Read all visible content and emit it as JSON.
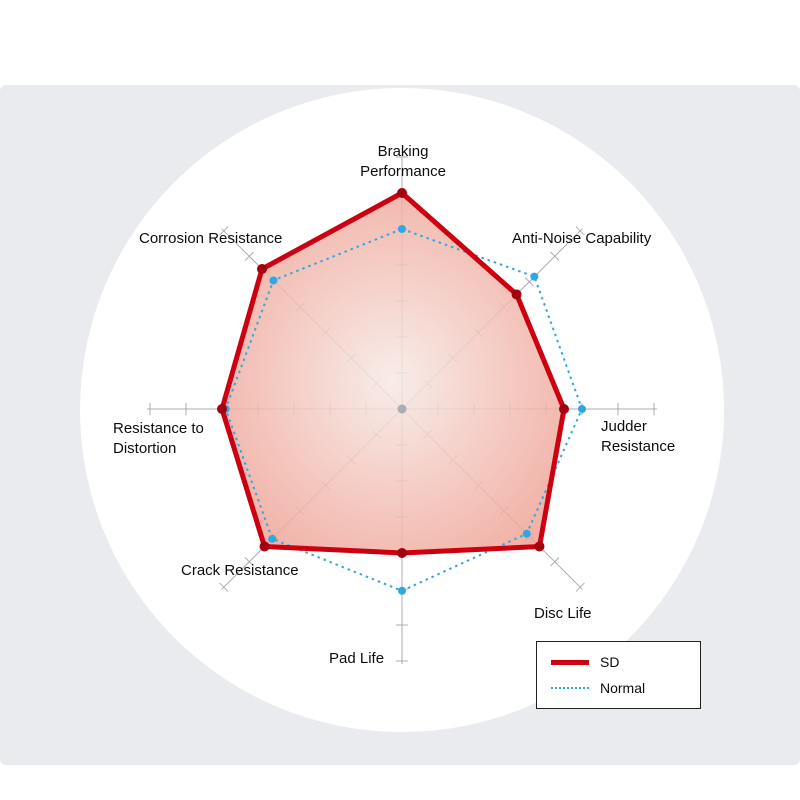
{
  "chart_data": {
    "type": "radar",
    "title": "",
    "axes": [
      {
        "label": "Braking\nPerformance"
      },
      {
        "label": "Anti-Noise Capability"
      },
      {
        "label": "Judder\nResistance"
      },
      {
        "label": "Disc Life"
      },
      {
        "label": "Pad Life"
      },
      {
        "label": "Crack Resistance"
      },
      {
        "label": "Resistance to\nDistortion"
      },
      {
        "label": "Corrosion Resistance"
      }
    ],
    "scale": {
      "min": 0,
      "max": 7,
      "ticks": 7
    },
    "series": [
      {
        "name": "SD",
        "style": "solid",
        "color": "#cc0011",
        "dot_color": "#a30010",
        "fill_center": "#f6e9e5",
        "fill_edge": "#efa092",
        "values": [
          6.0,
          4.5,
          4.5,
          5.4,
          4.0,
          5.4,
          5.0,
          5.5
        ]
      },
      {
        "name": "Normal",
        "style": "dotted",
        "color": "#2fa8e1",
        "dot_color": "#2fa8e1",
        "values": [
          5.0,
          5.2,
          5.0,
          4.9,
          5.05,
          5.1,
          4.9,
          5.05
        ]
      }
    ],
    "legend": {
      "position": "bottom-right"
    }
  },
  "colors": {
    "grid": "#a9adb4",
    "panel_background": "#e9ebee",
    "circle_background": "#ffffff"
  }
}
